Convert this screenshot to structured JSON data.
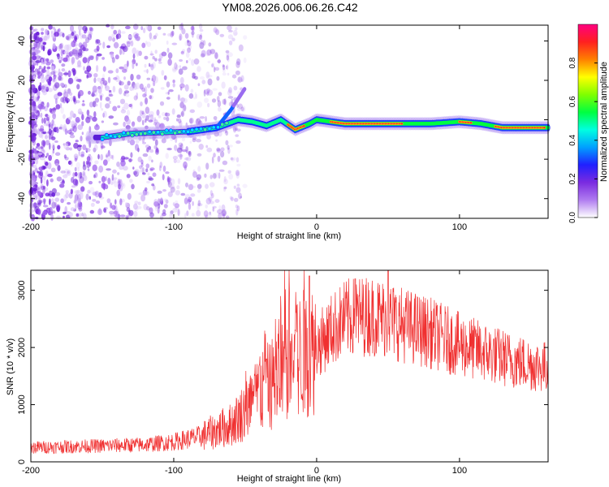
{
  "title": "YM08.2026.006.06.26.C42",
  "chart_data": [
    {
      "type": "heatmap",
      "name": "spectrogram",
      "xlabel": "Height of straight line (km)",
      "ylabel": "Frequency (Hz)",
      "xlim": [
        -200,
        162
      ],
      "ylim": [
        -50,
        48
      ],
      "xticks": [
        -200,
        -100,
        0,
        100
      ],
      "yticks": [
        -40,
        -20,
        0,
        20,
        40
      ],
      "grid": false,
      "colorbar": {
        "label": "Normalized spectral amplitude",
        "range": [
          0.0,
          1.0
        ],
        "ticks": [
          0.0,
          0.2,
          0.4,
          0.6,
          0.8
        ],
        "tick_labels": [
          "0.0",
          "0.2",
          "0.4",
          "0.6",
          "0.8"
        ],
        "colors": [
          "#ffffff",
          "#b07cf0",
          "#7a2be0",
          "#2020ff",
          "#00a0ff",
          "#00ffe0",
          "#00ff40",
          "#80ff00",
          "#ffff00",
          "#ff8000",
          "#ff2020",
          "#ff0080"
        ]
      },
      "ridge": [
        {
          "x": -150,
          "y": -9
        },
        {
          "x": -130,
          "y": -7
        },
        {
          "x": -90,
          "y": -6
        },
        {
          "x": -70,
          "y": -4
        },
        {
          "x": -55,
          "y": 0
        },
        {
          "x": -45,
          "y": -1
        },
        {
          "x": -35,
          "y": -3
        },
        {
          "x": -25,
          "y": 0
        },
        {
          "x": -15,
          "y": -5
        },
        {
          "x": -5,
          "y": -2
        },
        {
          "x": 0,
          "y": 0
        },
        {
          "x": 20,
          "y": -2
        },
        {
          "x": 60,
          "y": -2
        },
        {
          "x": 80,
          "y": -2
        },
        {
          "x": 100,
          "y": -1
        },
        {
          "x": 115,
          "y": -2
        },
        {
          "x": 130,
          "y": -4
        },
        {
          "x": 162,
          "y": -4
        }
      ],
      "branch": [
        {
          "x": -70,
          "y": -4
        },
        {
          "x": -60,
          "y": 5
        },
        {
          "x": -50,
          "y": 16
        }
      ]
    },
    {
      "type": "line",
      "name": "snr",
      "xlabel": "Height of straight line (km)",
      "ylabel": "SNR (10 * v/v)",
      "xlim": [
        -200,
        162
      ],
      "ylim": [
        0,
        3350
      ],
      "xticks": [
        -200,
        -100,
        0,
        100
      ],
      "yticks": [
        0,
        1000,
        2000,
        3000
      ],
      "color": "#f03030",
      "grid": false,
      "series": [
        {
          "name": "SNR",
          "envelope": [
            {
              "x": -200,
              "y": 250
            },
            {
              "x": -150,
              "y": 280
            },
            {
              "x": -120,
              "y": 300
            },
            {
              "x": -100,
              "y": 350
            },
            {
              "x": -80,
              "y": 450
            },
            {
              "x": -60,
              "y": 650
            },
            {
              "x": -50,
              "y": 900
            },
            {
              "x": -40,
              "y": 1200
            },
            {
              "x": -30,
              "y": 1400
            },
            {
              "x": -20,
              "y": 1700
            },
            {
              "x": -10,
              "y": 1900
            },
            {
              "x": 0,
              "y": 2000
            },
            {
              "x": 10,
              "y": 2300
            },
            {
              "x": 20,
              "y": 2500
            },
            {
              "x": 30,
              "y": 2550
            },
            {
              "x": 40,
              "y": 2550
            },
            {
              "x": 50,
              "y": 2500
            },
            {
              "x": 60,
              "y": 2400
            },
            {
              "x": 80,
              "y": 2250
            },
            {
              "x": 100,
              "y": 2050
            },
            {
              "x": 120,
              "y": 1900
            },
            {
              "x": 140,
              "y": 1750
            },
            {
              "x": 162,
              "y": 1650
            }
          ],
          "peaks": [
            {
              "x": -40,
              "y": 1700
            },
            {
              "x": -35,
              "y": 1800
            },
            {
              "x": -25,
              "y": 2900
            },
            {
              "x": -5,
              "y": 3250
            },
            {
              "x": 27,
              "y": 3200
            },
            {
              "x": 50,
              "y": 3350
            }
          ]
        }
      ]
    }
  ]
}
